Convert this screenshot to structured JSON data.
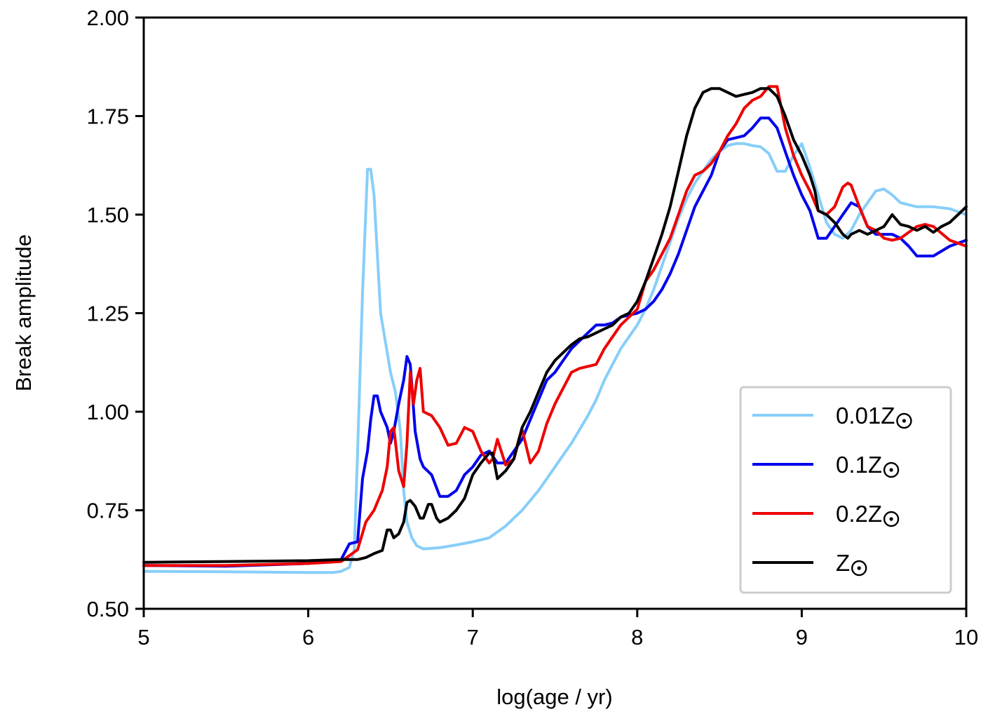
{
  "chart_data": {
    "type": "line",
    "title": "",
    "xlabel": "log(age / yr)",
    "ylabel": "Break amplitude",
    "xlim": [
      5,
      10
    ],
    "ylim": [
      0.5,
      2.0
    ],
    "xticks": [
      5,
      6,
      7,
      8,
      9,
      10
    ],
    "xtick_labels": [
      "5",
      "6",
      "7",
      "8",
      "9",
      "10"
    ],
    "yticks": [
      0.5,
      0.75,
      1.0,
      1.25,
      1.5,
      1.75,
      2.0
    ],
    "ytick_labels": [
      "0.50",
      "0.75",
      "1.00",
      "1.25",
      "1.50",
      "1.75",
      "2.00"
    ],
    "grid": false,
    "legend": {
      "placement": "lower-right"
    },
    "series": [
      {
        "name": "0.01Z☉",
        "label_main": "0.01Z",
        "color": "#87CEFA",
        "x": [
          5.0,
          5.5,
          6.0,
          6.15,
          6.2,
          6.25,
          6.28,
          6.3,
          6.33,
          6.36,
          6.38,
          6.4,
          6.42,
          6.44,
          6.46,
          6.48,
          6.5,
          6.53,
          6.56,
          6.58,
          6.6,
          6.63,
          6.66,
          6.7,
          6.8,
          6.9,
          7.0,
          7.1,
          7.15,
          7.2,
          7.25,
          7.3,
          7.35,
          7.4,
          7.45,
          7.5,
          7.55,
          7.6,
          7.65,
          7.7,
          7.75,
          7.8,
          7.85,
          7.9,
          7.95,
          8.0,
          8.05,
          8.1,
          8.15,
          8.2,
          8.25,
          8.3,
          8.35,
          8.4,
          8.45,
          8.5,
          8.55,
          8.6,
          8.65,
          8.7,
          8.75,
          8.8,
          8.85,
          8.9,
          8.95,
          9.0,
          9.05,
          9.1,
          9.15,
          9.2,
          9.25,
          9.3,
          9.35,
          9.4,
          9.45,
          9.5,
          9.55,
          9.6,
          9.7,
          9.8,
          9.9,
          10.0
        ],
        "y": [
          0.595,
          0.594,
          0.592,
          0.592,
          0.595,
          0.605,
          0.65,
          0.9,
          1.3,
          1.615,
          1.615,
          1.55,
          1.4,
          1.25,
          1.2,
          1.15,
          1.1,
          1.05,
          0.95,
          0.8,
          0.72,
          0.68,
          0.66,
          0.652,
          0.655,
          0.662,
          0.67,
          0.68,
          0.695,
          0.71,
          0.73,
          0.75,
          0.775,
          0.8,
          0.83,
          0.86,
          0.89,
          0.92,
          0.955,
          0.99,
          1.03,
          1.08,
          1.12,
          1.16,
          1.19,
          1.22,
          1.26,
          1.31,
          1.37,
          1.43,
          1.49,
          1.54,
          1.58,
          1.61,
          1.64,
          1.66,
          1.675,
          1.68,
          1.68,
          1.675,
          1.672,
          1.655,
          1.61,
          1.61,
          1.65,
          1.68,
          1.62,
          1.55,
          1.48,
          1.45,
          1.44,
          1.46,
          1.5,
          1.53,
          1.56,
          1.565,
          1.55,
          1.53,
          1.52,
          1.52,
          1.515,
          1.5
        ]
      },
      {
        "name": "0.1Z☉",
        "label_main": "0.1Z",
        "color": "#0000EE",
        "x": [
          5.0,
          5.5,
          6.0,
          6.2,
          6.25,
          6.3,
          6.33,
          6.36,
          6.38,
          6.4,
          6.42,
          6.44,
          6.46,
          6.48,
          6.5,
          6.52,
          6.55,
          6.58,
          6.6,
          6.62,
          6.65,
          6.68,
          6.7,
          6.75,
          6.8,
          6.85,
          6.9,
          6.95,
          7.0,
          7.05,
          7.1,
          7.15,
          7.2,
          7.25,
          7.3,
          7.35,
          7.4,
          7.45,
          7.5,
          7.55,
          7.6,
          7.65,
          7.7,
          7.75,
          7.8,
          7.85,
          7.9,
          7.95,
          8.0,
          8.05,
          8.1,
          8.15,
          8.2,
          8.25,
          8.3,
          8.35,
          8.4,
          8.45,
          8.5,
          8.55,
          8.6,
          8.65,
          8.7,
          8.75,
          8.8,
          8.85,
          8.9,
          8.95,
          9.0,
          9.05,
          9.1,
          9.15,
          9.2,
          9.25,
          9.3,
          9.35,
          9.4,
          9.45,
          9.5,
          9.55,
          9.6,
          9.65,
          9.7,
          9.8,
          9.9,
          10.0
        ],
        "y": [
          0.61,
          0.608,
          0.615,
          0.625,
          0.665,
          0.67,
          0.83,
          0.9,
          0.98,
          1.04,
          1.04,
          1.0,
          0.98,
          0.96,
          0.92,
          0.95,
          1.02,
          1.08,
          1.14,
          1.12,
          0.95,
          0.88,
          0.86,
          0.84,
          0.785,
          0.785,
          0.8,
          0.84,
          0.86,
          0.89,
          0.9,
          0.87,
          0.87,
          0.9,
          0.93,
          0.98,
          1.03,
          1.08,
          1.1,
          1.13,
          1.16,
          1.18,
          1.2,
          1.22,
          1.22,
          1.225,
          1.24,
          1.245,
          1.25,
          1.26,
          1.28,
          1.31,
          1.35,
          1.4,
          1.46,
          1.52,
          1.56,
          1.6,
          1.66,
          1.69,
          1.695,
          1.7,
          1.72,
          1.745,
          1.745,
          1.72,
          1.66,
          1.6,
          1.55,
          1.51,
          1.44,
          1.44,
          1.47,
          1.5,
          1.53,
          1.52,
          1.47,
          1.45,
          1.45,
          1.45,
          1.44,
          1.42,
          1.395,
          1.395,
          1.42,
          1.435
        ]
      },
      {
        "name": "0.2Z☉",
        "label_main": "0.2Z",
        "color": "#EE0000",
        "x": [
          5.0,
          5.5,
          6.0,
          6.2,
          6.25,
          6.3,
          6.35,
          6.4,
          6.45,
          6.48,
          6.5,
          6.52,
          6.55,
          6.58,
          6.6,
          6.62,
          6.64,
          6.66,
          6.68,
          6.7,
          6.75,
          6.8,
          6.85,
          6.9,
          6.95,
          7.0,
          7.05,
          7.1,
          7.12,
          7.15,
          7.2,
          7.25,
          7.28,
          7.3,
          7.35,
          7.4,
          7.45,
          7.5,
          7.55,
          7.6,
          7.65,
          7.7,
          7.75,
          7.8,
          7.85,
          7.9,
          7.95,
          8.0,
          8.05,
          8.1,
          8.15,
          8.2,
          8.25,
          8.3,
          8.35,
          8.4,
          8.45,
          8.5,
          8.55,
          8.6,
          8.65,
          8.7,
          8.75,
          8.8,
          8.85,
          8.9,
          8.95,
          9.0,
          9.05,
          9.1,
          9.15,
          9.2,
          9.25,
          9.28,
          9.3,
          9.35,
          9.4,
          9.45,
          9.5,
          9.55,
          9.6,
          9.7,
          9.75,
          9.8,
          9.9,
          10.0
        ],
        "y": [
          0.61,
          0.61,
          0.615,
          0.62,
          0.635,
          0.65,
          0.72,
          0.75,
          0.8,
          0.86,
          0.95,
          0.96,
          0.85,
          0.81,
          0.92,
          1.1,
          1.02,
          1.08,
          1.11,
          1.0,
          0.99,
          0.96,
          0.915,
          0.92,
          0.96,
          0.95,
          0.9,
          0.87,
          0.88,
          0.93,
          0.865,
          0.88,
          0.93,
          0.955,
          0.87,
          0.9,
          0.97,
          1.02,
          1.06,
          1.1,
          1.11,
          1.115,
          1.12,
          1.16,
          1.19,
          1.22,
          1.24,
          1.26,
          1.33,
          1.36,
          1.4,
          1.44,
          1.5,
          1.56,
          1.6,
          1.61,
          1.63,
          1.66,
          1.7,
          1.73,
          1.77,
          1.79,
          1.8,
          1.825,
          1.825,
          1.72,
          1.65,
          1.6,
          1.56,
          1.51,
          1.5,
          1.52,
          1.57,
          1.58,
          1.575,
          1.52,
          1.47,
          1.46,
          1.44,
          1.435,
          1.44,
          1.47,
          1.475,
          1.47,
          1.435,
          1.42
        ]
      },
      {
        "name": "Z☉",
        "label_main": "Z",
        "color": "#000000",
        "x": [
          5.0,
          5.5,
          6.0,
          6.2,
          6.3,
          6.35,
          6.4,
          6.45,
          6.48,
          6.5,
          6.52,
          6.55,
          6.58,
          6.6,
          6.62,
          6.65,
          6.68,
          6.7,
          6.73,
          6.75,
          6.78,
          6.8,
          6.85,
          6.9,
          6.95,
          7.0,
          7.05,
          7.1,
          7.12,
          7.15,
          7.2,
          7.25,
          7.3,
          7.35,
          7.4,
          7.45,
          7.5,
          7.55,
          7.6,
          7.65,
          7.7,
          7.75,
          7.8,
          7.85,
          7.9,
          7.95,
          8.0,
          8.05,
          8.1,
          8.15,
          8.2,
          8.25,
          8.3,
          8.35,
          8.4,
          8.45,
          8.5,
          8.55,
          8.6,
          8.65,
          8.7,
          8.75,
          8.8,
          8.85,
          8.9,
          8.95,
          9.0,
          9.05,
          9.08,
          9.1,
          9.15,
          9.2,
          9.25,
          9.28,
          9.3,
          9.35,
          9.4,
          9.45,
          9.5,
          9.55,
          9.6,
          9.65,
          9.7,
          9.75,
          9.8,
          9.85,
          9.9,
          9.95,
          10.0
        ],
        "y": [
          0.618,
          0.62,
          0.622,
          0.625,
          0.625,
          0.63,
          0.64,
          0.648,
          0.7,
          0.7,
          0.68,
          0.69,
          0.72,
          0.77,
          0.775,
          0.76,
          0.73,
          0.73,
          0.765,
          0.765,
          0.73,
          0.72,
          0.73,
          0.75,
          0.78,
          0.84,
          0.87,
          0.895,
          0.895,
          0.83,
          0.85,
          0.88,
          0.96,
          1.0,
          1.05,
          1.1,
          1.13,
          1.15,
          1.17,
          1.185,
          1.19,
          1.2,
          1.21,
          1.22,
          1.24,
          1.25,
          1.28,
          1.33,
          1.39,
          1.45,
          1.52,
          1.61,
          1.7,
          1.77,
          1.81,
          1.82,
          1.82,
          1.81,
          1.8,
          1.805,
          1.81,
          1.82,
          1.82,
          1.8,
          1.75,
          1.69,
          1.65,
          1.6,
          1.56,
          1.51,
          1.5,
          1.48,
          1.45,
          1.44,
          1.45,
          1.46,
          1.45,
          1.46,
          1.47,
          1.5,
          1.475,
          1.47,
          1.46,
          1.47,
          1.455,
          1.47,
          1.48,
          1.5,
          1.52
        ]
      }
    ]
  }
}
